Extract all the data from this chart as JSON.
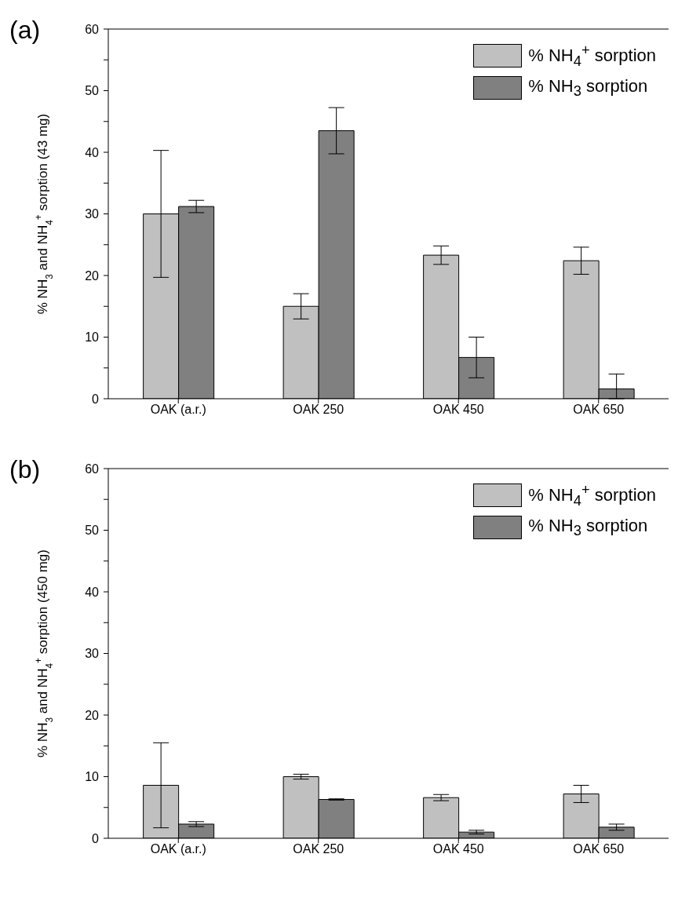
{
  "chart_data": [
    {
      "type": "bar",
      "title": "(a)",
      "ylabel": "% NH$_{3}$ and NH$_{4}$$^{+}$ sorption (43 mg)",
      "categories": [
        "OAK (a.r.)",
        "OAK 250",
        "OAK 450",
        "OAK 650"
      ],
      "series": [
        {
          "name": "% NH$_{4}$$^{+}$ sorption",
          "color": "#c0c0c0",
          "values": [
            30.0,
            15.0,
            23.3,
            22.4
          ],
          "errors": [
            10.3,
            2.05,
            1.5,
            2.2
          ]
        },
        {
          "name": "% NH$_{3}$ sorption",
          "color": "#808080",
          "values": [
            31.2,
            43.5,
            6.7,
            1.6
          ],
          "errors": [
            1.0,
            3.75,
            3.3,
            [
              0,
              4.0
            ]
          ]
        }
      ],
      "ylim": [
        0,
        60
      ],
      "yticks": [
        0,
        {
          "value": 5,
          "label": null
        },
        10,
        {
          "value": 15,
          "label": null
        },
        20,
        {
          "value": 25,
          "label": null
        },
        30,
        {
          "value": 35,
          "label": null
        },
        40,
        {
          "value": 45,
          "label": null
        },
        50,
        {
          "value": 55,
          "label": null
        },
        60
      ],
      "legend": "top right"
    },
    {
      "type": "bar",
      "title": "(b)",
      "ylabel": "% NH$_{3}$ and NH$_{4}$$^{+}$ sorption (450 mg)",
      "categories": [
        "OAK (a.r.)",
        "OAK 250",
        "OAK 450",
        "OAK 650"
      ],
      "series": [
        {
          "name": "% NH$_{4}$$^{+}$ sorption",
          "color": "#c0c0c0",
          "values": [
            8.6,
            10.0,
            6.6,
            7.2
          ],
          "errors": [
            6.9,
            0.4,
            0.5,
            1.4
          ]
        },
        {
          "name": "% NH$_{3}$ sorption",
          "color": "#808080",
          "values": [
            2.3,
            6.3,
            1.0,
            1.8
          ],
          "errors": [
            0.4,
            0.1,
            0.3,
            0.5
          ]
        }
      ],
      "ylim": [
        0,
        60
      ],
      "yticks": [
        0,
        {
          "value": 5,
          "label": null
        },
        10,
        {
          "value": 15,
          "label": null
        },
        20,
        {
          "value": 25,
          "label": null
        },
        30,
        {
          "value": 35,
          "label": null
        },
        40,
        {
          "value": 45,
          "label": null
        },
        50,
        {
          "value": 55,
          "label": null
        },
        60
      ],
      "legend": "top right"
    }
  ]
}
